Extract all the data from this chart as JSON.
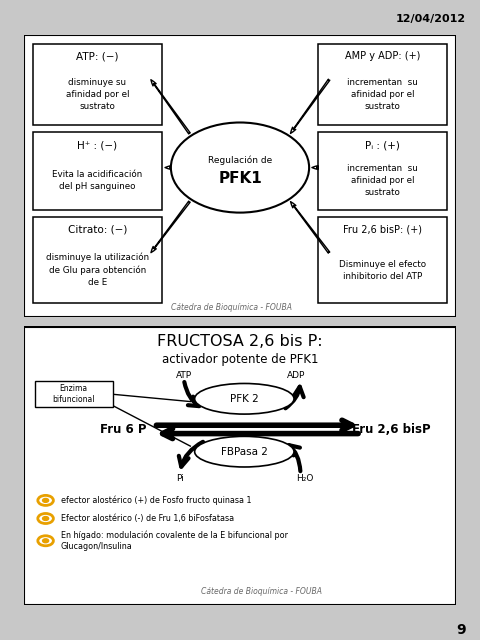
{
  "date_label": "12/04/2012",
  "page_number": "9",
  "bg_color": "#c8c8c8",
  "panel1": {
    "footer": "Cátedra de Bioquímica - FOUBA"
  },
  "panel2": {
    "title": "FRUCTOSA 2,6 bis P:",
    "subtitle": "activador potente de PFK1",
    "enzyme_box": "Enzima\nbifuncional",
    "bullets": [
      "efector alostérico (+) de Fosfo fructo quinasa 1",
      "Efector alostérico (-) de Fru 1,6 biFosfatasa",
      "En hígado: modulación covalente de la E bifuncional por\nGlucagon/Insulina"
    ],
    "bullet_color": "#e8a000",
    "footer": "Cátedra de Bioquímica - FOUBA"
  }
}
